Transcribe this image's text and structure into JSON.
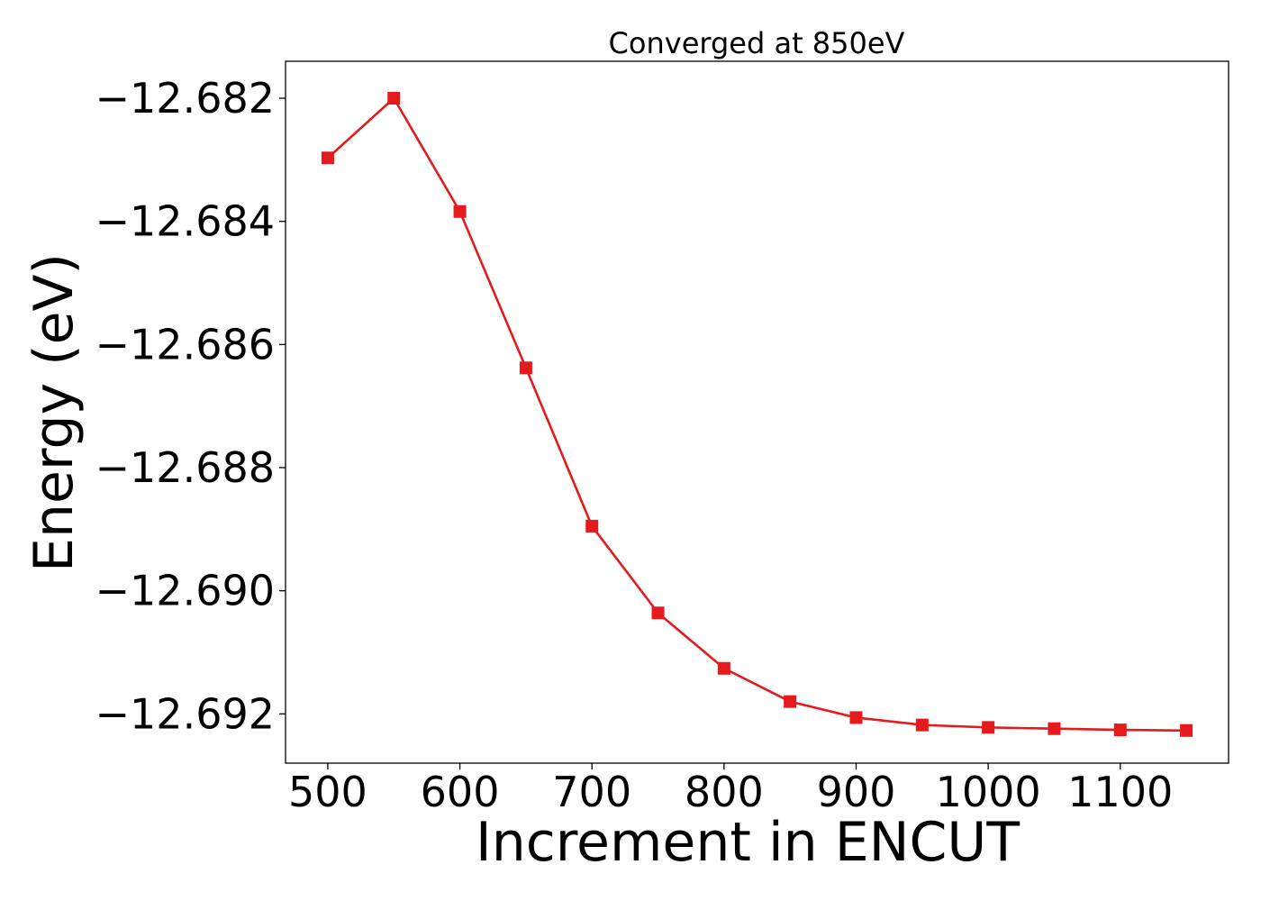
{
  "chart_data": {
    "type": "line",
    "title": "Converged at 850eV",
    "xlabel": "Increment in ENCUT",
    "ylabel": "Energy (eV)",
    "xlim": [
      468,
      1182
    ],
    "ylim": [
      -12.6928,
      -12.6814
    ],
    "x_ticks": [
      500,
      600,
      700,
      800,
      900,
      1000,
      1100
    ],
    "x_tick_labels": [
      "500",
      "600",
      "700",
      "800",
      "900",
      "1000",
      "1100"
    ],
    "y_ticks": [
      -12.682,
      -12.684,
      -12.686,
      -12.688,
      -12.69,
      -12.692
    ],
    "y_tick_labels": [
      "−12.682",
      "−12.684",
      "−12.686",
      "−12.688",
      "−12.690",
      "−12.692"
    ],
    "grid": false,
    "series": [
      {
        "color": "#e41a1c",
        "marker": "square",
        "x": [
          500,
          550,
          600,
          650,
          700,
          750,
          800,
          850,
          900,
          950,
          1000,
          1050,
          1100,
          1150
        ],
        "y": [
          -12.68297,
          -12.682,
          -12.68384,
          -12.68638,
          -12.68895,
          -12.69036,
          -12.69126,
          -12.6918,
          -12.69206,
          -12.69218,
          -12.69222,
          -12.69224,
          -12.69226,
          -12.69227
        ]
      }
    ]
  }
}
